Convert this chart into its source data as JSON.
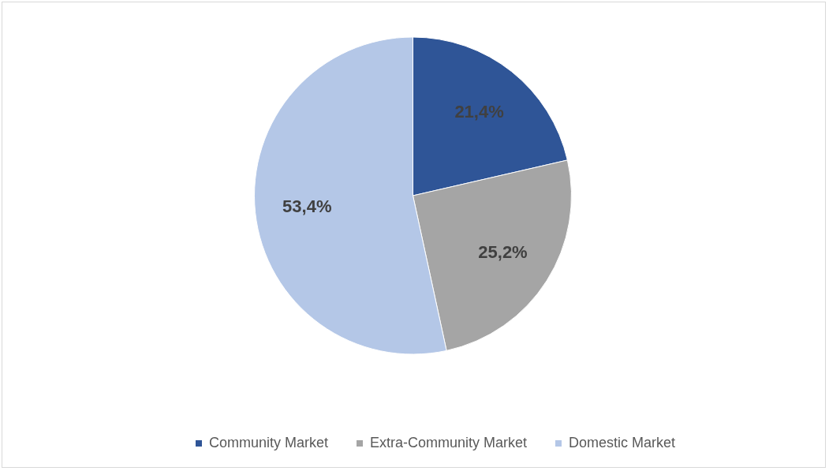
{
  "chart_data": {
    "type": "pie",
    "categories": [
      "Community Market",
      "Extra-Community Market",
      "Domestic Market"
    ],
    "values": [
      21.4,
      25.2,
      53.4
    ],
    "colors": [
      "#2f5597",
      "#a5a5a5",
      "#b4c7e7"
    ],
    "value_labels": [
      "21,4%",
      "25,2%",
      "53,4%"
    ],
    "legend": "bottom"
  }
}
